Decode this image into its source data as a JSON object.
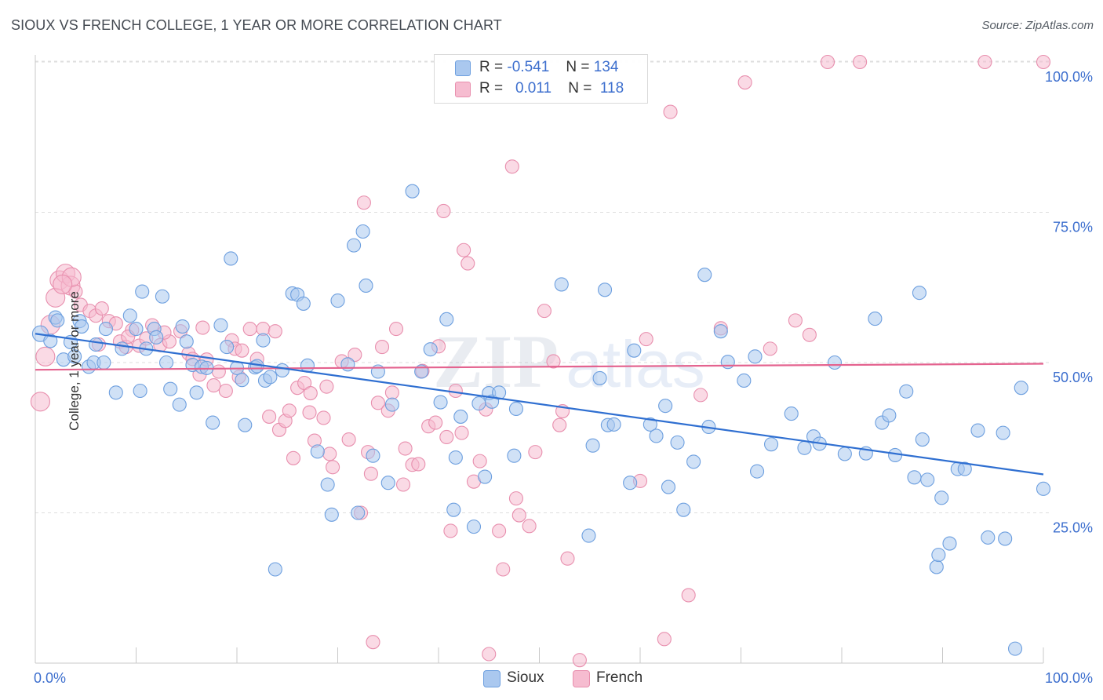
{
  "header": {
    "title": "SIOUX VS FRENCH COLLEGE, 1 YEAR OR MORE CORRELATION CHART",
    "source": "Source: ZipAtlas.com"
  },
  "legend": {
    "sioux": {
      "r_label": "R =",
      "r_value": "-0.541",
      "n_label": "N =",
      "n_value": "134"
    },
    "french": {
      "r_label": "R =",
      "r_value": "0.011",
      "n_label": "N =",
      "n_value": "118"
    }
  },
  "bottom_legend": {
    "sioux": "Sioux",
    "french": "French"
  },
  "watermark": {
    "zip": "ZIP",
    "atlas": "atlas"
  },
  "colors": {
    "sioux_fill": "#aac8ef",
    "sioux_stroke": "#6d9fdf",
    "sioux_line": "#2f6fd1",
    "french_fill": "#f6bcd0",
    "french_stroke": "#e88fae",
    "french_line": "#e4638f",
    "tick_label": "#3d6fce",
    "grid": "#dedede"
  },
  "chart_data": {
    "type": "scatter",
    "title": "SIOUX VS FRENCH COLLEGE, 1 YEAR OR MORE CORRELATION CHART",
    "xlabel": "",
    "ylabel": "College, 1 year or more",
    "xlim": [
      0,
      100
    ],
    "ylim": [
      0,
      102
    ],
    "x_tick_labels": [
      "0.0%",
      "100.0%"
    ],
    "y_ticks": [
      25,
      50,
      75,
      100
    ],
    "y_tick_labels": [
      "25.0%",
      "50.0%",
      "75.0%",
      "100.0%"
    ],
    "grid": true,
    "legend_position": "top-center",
    "series": [
      {
        "name": "Sioux",
        "r": -0.541,
        "n": 134,
        "trend": {
          "x": [
            0,
            100
          ],
          "y": [
            54.8,
            31.4
          ]
        },
        "points": [
          [
            0.5,
            54.8
          ],
          [
            1.5,
            53.6
          ],
          [
            2,
            57.5
          ],
          [
            2.2,
            57
          ],
          [
            2.8,
            50.5
          ],
          [
            3.5,
            53.4
          ],
          [
            3.9,
            51
          ],
          [
            4.4,
            56.9
          ],
          [
            4.6,
            56
          ],
          [
            5.3,
            49.3
          ],
          [
            5.8,
            50
          ],
          [
            6,
            53
          ],
          [
            6.8,
            50
          ],
          [
            7,
            55.6
          ],
          [
            8,
            45
          ],
          [
            8.6,
            52.3
          ],
          [
            9.4,
            57.8
          ],
          [
            10,
            55.6
          ],
          [
            10.4,
            45.3
          ],
          [
            10.6,
            61.8
          ],
          [
            11,
            52.3
          ],
          [
            11.8,
            55.6
          ],
          [
            12,
            54.2
          ],
          [
            12.6,
            61
          ],
          [
            13,
            50
          ],
          [
            13.4,
            45.6
          ],
          [
            14.3,
            43
          ],
          [
            14.6,
            56
          ],
          [
            15,
            53.5
          ],
          [
            15.6,
            49.6
          ],
          [
            16,
            45
          ],
          [
            16.5,
            49.3
          ],
          [
            17,
            49.1
          ],
          [
            17.6,
            40
          ],
          [
            18.4,
            56.2
          ],
          [
            19,
            52.6
          ],
          [
            19.4,
            67.3
          ],
          [
            20,
            49.1
          ],
          [
            20.5,
            47.1
          ],
          [
            20.8,
            39.6
          ],
          [
            21.8,
            49.2
          ],
          [
            22,
            49.4
          ],
          [
            22.6,
            53.7
          ],
          [
            22.8,
            47
          ],
          [
            23.3,
            47.6
          ],
          [
            23.8,
            15.6
          ],
          [
            24.5,
            48.7
          ],
          [
            25.5,
            61.5
          ],
          [
            26,
            61.3
          ],
          [
            26.6,
            59.8
          ],
          [
            27,
            49.5
          ],
          [
            28,
            35.2
          ],
          [
            29,
            29.7
          ],
          [
            29.4,
            24.7
          ],
          [
            30,
            60.3
          ],
          [
            31,
            49.7
          ],
          [
            31.6,
            69.5
          ],
          [
            32,
            25
          ],
          [
            32.5,
            71.8
          ],
          [
            32.8,
            62.8
          ],
          [
            33.5,
            34.5
          ],
          [
            34,
            48.5
          ],
          [
            35,
            30
          ],
          [
            35.4,
            43
          ],
          [
            37.4,
            78.5
          ],
          [
            38.3,
            48.5
          ],
          [
            39.2,
            52.2
          ],
          [
            40.2,
            43.4
          ],
          [
            40.8,
            57.2
          ],
          [
            41.5,
            25.5
          ],
          [
            41.7,
            34.2
          ],
          [
            42.2,
            41
          ],
          [
            43.5,
            22.7
          ],
          [
            44,
            43.2
          ],
          [
            44.6,
            31
          ],
          [
            45,
            44.9
          ],
          [
            45.3,
            43.5
          ],
          [
            46,
            45
          ],
          [
            47.5,
            34.5
          ],
          [
            47.7,
            42.3
          ],
          [
            52.2,
            63
          ],
          [
            54.9,
            21.2
          ],
          [
            55.3,
            36.2
          ],
          [
            56,
            47.4
          ],
          [
            56.5,
            62.1
          ],
          [
            56.8,
            39.6
          ],
          [
            57.4,
            39.7
          ],
          [
            59,
            30
          ],
          [
            59.4,
            52
          ],
          [
            61,
            39.7
          ],
          [
            61.6,
            37.8
          ],
          [
            62.5,
            42.8
          ],
          [
            62.8,
            29.3
          ],
          [
            63.7,
            36.7
          ],
          [
            64.3,
            25.5
          ],
          [
            65.3,
            33.5
          ],
          [
            66.4,
            64.6
          ],
          [
            66.8,
            39.3
          ],
          [
            68,
            55.2
          ],
          [
            68.7,
            50.1
          ],
          [
            70.3,
            47
          ],
          [
            71.4,
            51
          ],
          [
            71.6,
            31.9
          ],
          [
            73,
            36.4
          ],
          [
            75,
            41.5
          ],
          [
            76.3,
            35.8
          ],
          [
            77.2,
            37.7
          ],
          [
            77.8,
            36.5
          ],
          [
            79.3,
            50
          ],
          [
            80.3,
            34.8
          ],
          [
            82.4,
            34.9
          ],
          [
            83.3,
            57.3
          ],
          [
            84,
            40
          ],
          [
            84.7,
            41.2
          ],
          [
            85.3,
            34.6
          ],
          [
            86.4,
            45.2
          ],
          [
            87.2,
            30.9
          ],
          [
            87.7,
            61.6
          ],
          [
            88,
            37.2
          ],
          [
            88.5,
            30.5
          ],
          [
            89.4,
            16
          ],
          [
            89.6,
            18
          ],
          [
            89.9,
            27.5
          ],
          [
            90.7,
            19.9
          ],
          [
            91.5,
            32.3
          ],
          [
            92.2,
            32.3
          ],
          [
            93.5,
            38.7
          ],
          [
            94.5,
            20.9
          ],
          [
            96,
            38.3
          ],
          [
            96.2,
            20.7
          ],
          [
            97.2,
            2.4
          ],
          [
            97.8,
            45.8
          ],
          [
            100,
            29
          ]
        ]
      },
      {
        "name": "French",
        "r": 0.011,
        "n": 118,
        "trend": {
          "x": [
            0,
            100
          ],
          "y": [
            48.8,
            49.8
          ]
        },
        "points": [
          [
            0.5,
            43.5
          ],
          [
            1,
            51
          ],
          [
            1.5,
            56.3
          ],
          [
            2,
            60.8
          ],
          [
            2.4,
            63.7
          ],
          [
            3,
            64.8
          ],
          [
            3.5,
            62.8
          ],
          [
            4,
            61.8
          ],
          [
            4.5,
            59.6
          ],
          [
            5.4,
            58.6
          ],
          [
            6,
            57.8
          ],
          [
            6.6,
            59
          ],
          [
            7.3,
            56.9
          ],
          [
            8,
            56.5
          ],
          [
            8.4,
            53.5
          ],
          [
            9,
            52.6
          ],
          [
            9.6,
            55.4
          ],
          [
            10.3,
            52.8
          ],
          [
            11,
            54
          ],
          [
            11.6,
            56.2
          ],
          [
            12.4,
            52.9
          ],
          [
            13.3,
            53.5
          ],
          [
            14.4,
            55.2
          ],
          [
            15.2,
            51.5
          ],
          [
            15.6,
            50.6
          ],
          [
            16.3,
            48
          ],
          [
            17,
            50.5
          ],
          [
            17.7,
            46.2
          ],
          [
            18.2,
            48.5
          ],
          [
            18.9,
            45.3
          ],
          [
            19.5,
            53.7
          ],
          [
            19.8,
            52.3
          ],
          [
            20.2,
            47.6
          ],
          [
            21.3,
            55.6
          ],
          [
            22,
            50.6
          ],
          [
            22.6,
            55.6
          ],
          [
            23.2,
            41
          ],
          [
            23.8,
            55.2
          ],
          [
            24.2,
            38.8
          ],
          [
            24.8,
            40.3
          ],
          [
            25.2,
            42
          ],
          [
            25.6,
            34.1
          ],
          [
            26,
            45.8
          ],
          [
            26.7,
            46.6
          ],
          [
            27.3,
            44.9
          ],
          [
            27.7,
            37
          ],
          [
            28.6,
            40.8
          ],
          [
            28.9,
            46
          ],
          [
            29.2,
            34.8
          ],
          [
            29.5,
            32.6
          ],
          [
            30.4,
            50.2
          ],
          [
            31.1,
            37.2
          ],
          [
            31.7,
            51.3
          ],
          [
            32.3,
            25
          ],
          [
            32.6,
            76.6
          ],
          [
            33,
            35.1
          ],
          [
            33.3,
            31.5
          ],
          [
            34,
            43.3
          ],
          [
            34.4,
            52.6
          ],
          [
            35,
            42
          ],
          [
            35.4,
            45
          ],
          [
            35.8,
            55.6
          ],
          [
            36.5,
            29.7
          ],
          [
            36.7,
            35.7
          ],
          [
            37.4,
            33
          ],
          [
            38,
            33.1
          ],
          [
            38.4,
            48.6
          ],
          [
            39,
            39.4
          ],
          [
            39.7,
            40
          ],
          [
            40,
            52.7
          ],
          [
            40.5,
            75.2
          ],
          [
            40.8,
            37.6
          ],
          [
            41.2,
            22
          ],
          [
            41.7,
            45.3
          ],
          [
            42.3,
            38.3
          ],
          [
            42.5,
            68.7
          ],
          [
            42.9,
            66.5
          ],
          [
            43.5,
            30.2
          ],
          [
            44.1,
            33.6
          ],
          [
            44.7,
            42.2
          ],
          [
            46,
            22
          ],
          [
            46.4,
            15.6
          ],
          [
            47.3,
            82.6
          ],
          [
            47.7,
            27.4
          ],
          [
            48,
            24.6
          ],
          [
            49,
            22.8
          ],
          [
            49.6,
            35.1
          ],
          [
            50.5,
            58.6
          ],
          [
            51.4,
            50.2
          ],
          [
            52,
            39.6
          ],
          [
            52.3,
            41.9
          ],
          [
            52.8,
            17.4
          ],
          [
            60,
            30.3
          ],
          [
            60.6,
            53.9
          ],
          [
            62.4,
            4
          ],
          [
            63,
            91.7
          ],
          [
            64.8,
            11.3
          ],
          [
            66,
            44.6
          ],
          [
            68,
            55.7
          ],
          [
            70.4,
            96.6
          ],
          [
            72.9,
            52.3
          ],
          [
            75.4,
            57
          ],
          [
            76.8,
            54.6
          ],
          [
            78.6,
            100
          ],
          [
            81.8,
            100
          ],
          [
            94.2,
            100
          ],
          [
            100,
            100
          ],
          [
            45,
            1.5
          ],
          [
            54,
            0.5
          ],
          [
            33.5,
            3.5
          ],
          [
            27.2,
            41.7
          ],
          [
            20.5,
            52
          ],
          [
            16.6,
            55.8
          ],
          [
            12.8,
            55
          ],
          [
            9.2,
            54.3
          ],
          [
            6.3,
            53
          ],
          [
            3.6,
            64.2
          ],
          [
            2.7,
            63
          ]
        ]
      }
    ]
  }
}
